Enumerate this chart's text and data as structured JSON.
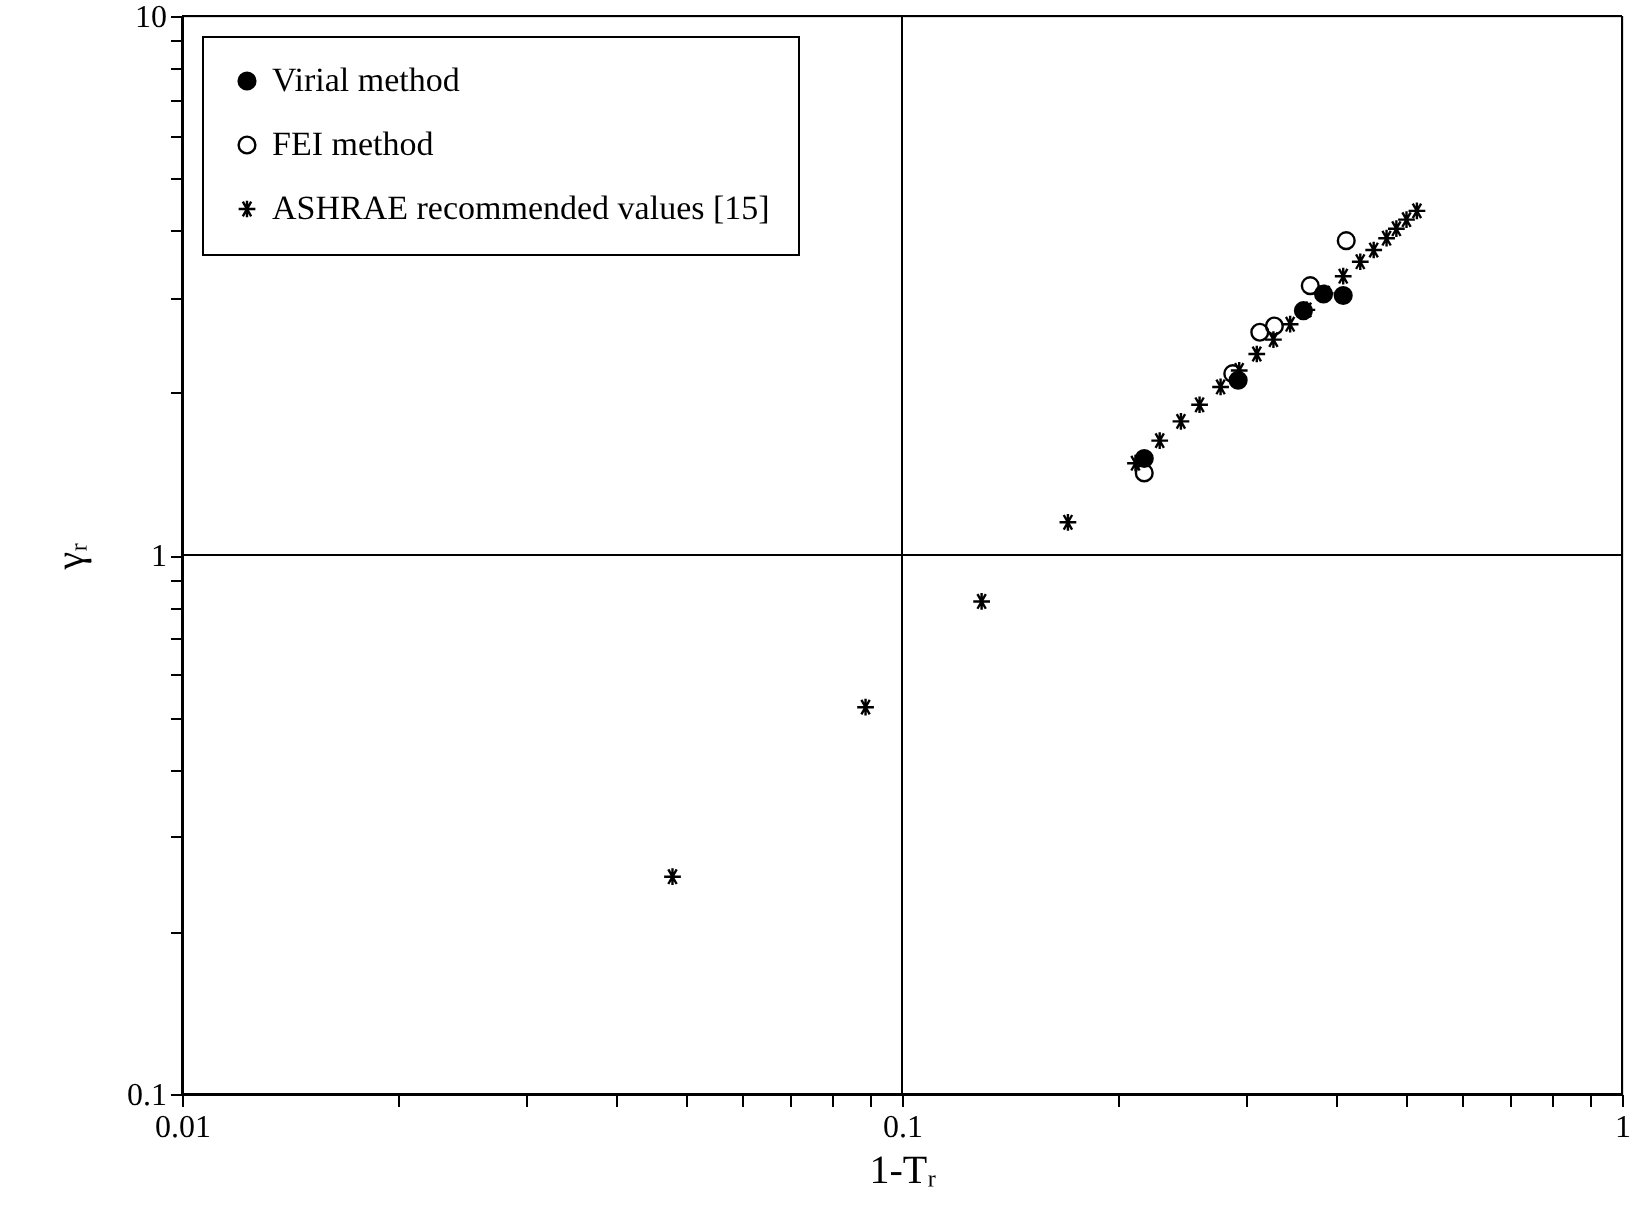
{
  "chart_data": {
    "type": "scatter",
    "xlabel": "1-Tᵣ",
    "ylabel": "γᵣ",
    "log": "xy",
    "grid": true,
    "legend": "top left",
    "xlim": [
      0.01,
      1
    ],
    "ylim": [
      0.1,
      10
    ],
    "xticks": [
      0.01,
      {
        "value": 0.02,
        "label": null
      },
      {
        "value": 0.03,
        "label": null
      },
      {
        "value": 0.04,
        "label": null
      },
      {
        "value": 0.05,
        "label": null
      },
      {
        "value": 0.06,
        "label": null
      },
      {
        "value": 0.07,
        "label": null
      },
      {
        "value": 0.08,
        "label": null
      },
      {
        "value": 0.09,
        "label": null
      },
      0.1,
      {
        "value": 0.2,
        "label": null
      },
      {
        "value": 0.3,
        "label": null
      },
      {
        "value": 0.4,
        "label": null
      },
      {
        "value": 0.5,
        "label": null
      },
      {
        "value": 0.6,
        "label": null
      },
      {
        "value": 0.7,
        "label": null
      },
      {
        "value": 0.8,
        "label": null
      },
      {
        "value": 0.9,
        "label": null
      },
      1
    ],
    "yticks": [
      0.1,
      {
        "value": 0.2,
        "label": null
      },
      {
        "value": 0.3,
        "label": null
      },
      {
        "value": 0.4,
        "label": null
      },
      {
        "value": 0.5,
        "label": null
      },
      {
        "value": 0.6,
        "label": null
      },
      {
        "value": 0.7,
        "label": null
      },
      {
        "value": 0.8,
        "label": null
      },
      {
        "value": 0.9,
        "label": null
      },
      1,
      {
        "value": 2,
        "label": null
      },
      {
        "value": 3,
        "label": null
      },
      {
        "value": 4,
        "label": null
      },
      {
        "value": 5,
        "label": null
      },
      {
        "value": 6,
        "label": null
      },
      {
        "value": 7,
        "label": null
      },
      {
        "value": 8,
        "label": null
      },
      {
        "value": 9,
        "label": null
      },
      10
    ],
    "series": [
      {
        "name": "Virial method",
        "color": "#000000",
        "marker": "circle",
        "x": [
          0.217,
          0.293,
          0.361,
          0.385,
          0.41
        ],
        "values": [
          1.51,
          2.11,
          2.84,
          3.05,
          3.03
        ]
      },
      {
        "name": "FEI method",
        "color": "#000000",
        "marker": "circle",
        "x": [
          0.217,
          0.288,
          0.314,
          0.329,
          0.369,
          0.414
        ],
        "values": [
          1.42,
          2.17,
          2.59,
          2.66,
          3.16,
          3.83
        ]
      },
      {
        "name": "ASHRAE recommended values [15]",
        "color": "#000000",
        "marker": "cross",
        "x": [
          0.048,
          0.089,
          0.129,
          0.17,
          0.211,
          0.228,
          0.244,
          0.259,
          0.277,
          0.294,
          0.311,
          0.328,
          0.346,
          0.365,
          0.387,
          0.41,
          0.433,
          0.452,
          0.471,
          0.486,
          0.502,
          0.519
        ],
        "values": [
          0.253,
          0.522,
          0.82,
          1.15,
          1.48,
          1.63,
          1.77,
          1.9,
          2.05,
          2.2,
          2.36,
          2.51,
          2.68,
          2.85,
          3.06,
          3.29,
          3.5,
          3.68,
          3.87,
          4.03,
          4.19,
          4.35
        ]
      }
    ]
  }
}
